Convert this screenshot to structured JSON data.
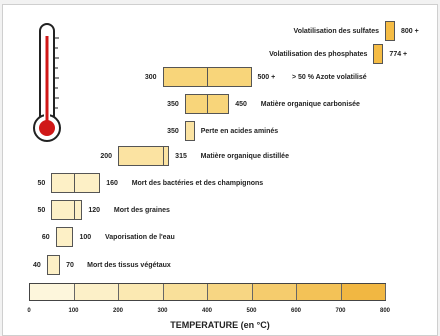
{
  "colors": {
    "accent": "#f5c85a",
    "pale": "#fdf0c6",
    "thermometer_red": "#d01818",
    "outline": "#333333"
  },
  "axis": {
    "title": "TEMPERATURE (en °C)",
    "ticks": [
      "0",
      "100",
      "200",
      "300",
      "400",
      "500",
      "600",
      "700",
      "800"
    ]
  },
  "scale_cells": [
    "#fdf6dc",
    "#fcf0c8",
    "#fbe9b2",
    "#f9e09a",
    "#f7d683",
    "#f5cc6d",
    "#f3c257",
    "#f1b742"
  ],
  "events": [
    {
      "label": "Volatilisation des sulfates",
      "min": 800,
      "max": null,
      "min_text": "",
      "max_text": "800 +",
      "color": "#f5bc45",
      "divider": null
    },
    {
      "label": "Volatilisation des phosphates",
      "min": 774,
      "max": null,
      "min_text": "",
      "max_text": "774 +",
      "color": "#f5bc45",
      "divider": null
    },
    {
      "label": "> 50 % Azote volatilisé",
      "min": 300,
      "max": 500,
      "min_text": "300",
      "max_text": "500 +",
      "color": "#f8d57a",
      "divider": 400
    },
    {
      "label": "Matière organique carbonisée",
      "min": 350,
      "max": 450,
      "min_text": "350",
      "max_text": "450",
      "color": "#f8d57a",
      "divider": 400
    },
    {
      "label": "Perte en acides aminés",
      "min": 350,
      "max": null,
      "min_text": "350",
      "max_text": "",
      "color": "#fbe3a2",
      "divider": null
    },
    {
      "label": "Matière organique distillée",
      "min": 200,
      "max": 315,
      "min_text": "200",
      "max_text": "315",
      "color": "#fbe3a2",
      "divider": 300
    },
    {
      "label": "Mort des bactéries et des champignons",
      "min": 50,
      "max": 160,
      "min_text": "50",
      "max_text": "160",
      "color": "#fdf0c6",
      "divider": 100
    },
    {
      "label": "Mort des graines",
      "min": 50,
      "max": 120,
      "min_text": "50",
      "max_text": "120",
      "color": "#fdf0c6",
      "divider": 100
    },
    {
      "label": "Vaporisation de l'eau",
      "min": 60,
      "max": 100,
      "min_text": "60",
      "max_text": "100",
      "color": "#fdf0c6",
      "divider": null
    },
    {
      "label": "Mort des tissus végétaux",
      "min": 40,
      "max": 70,
      "min_text": "40",
      "max_text": "70",
      "color": "#fdf0c6",
      "divider": null
    }
  ]
}
